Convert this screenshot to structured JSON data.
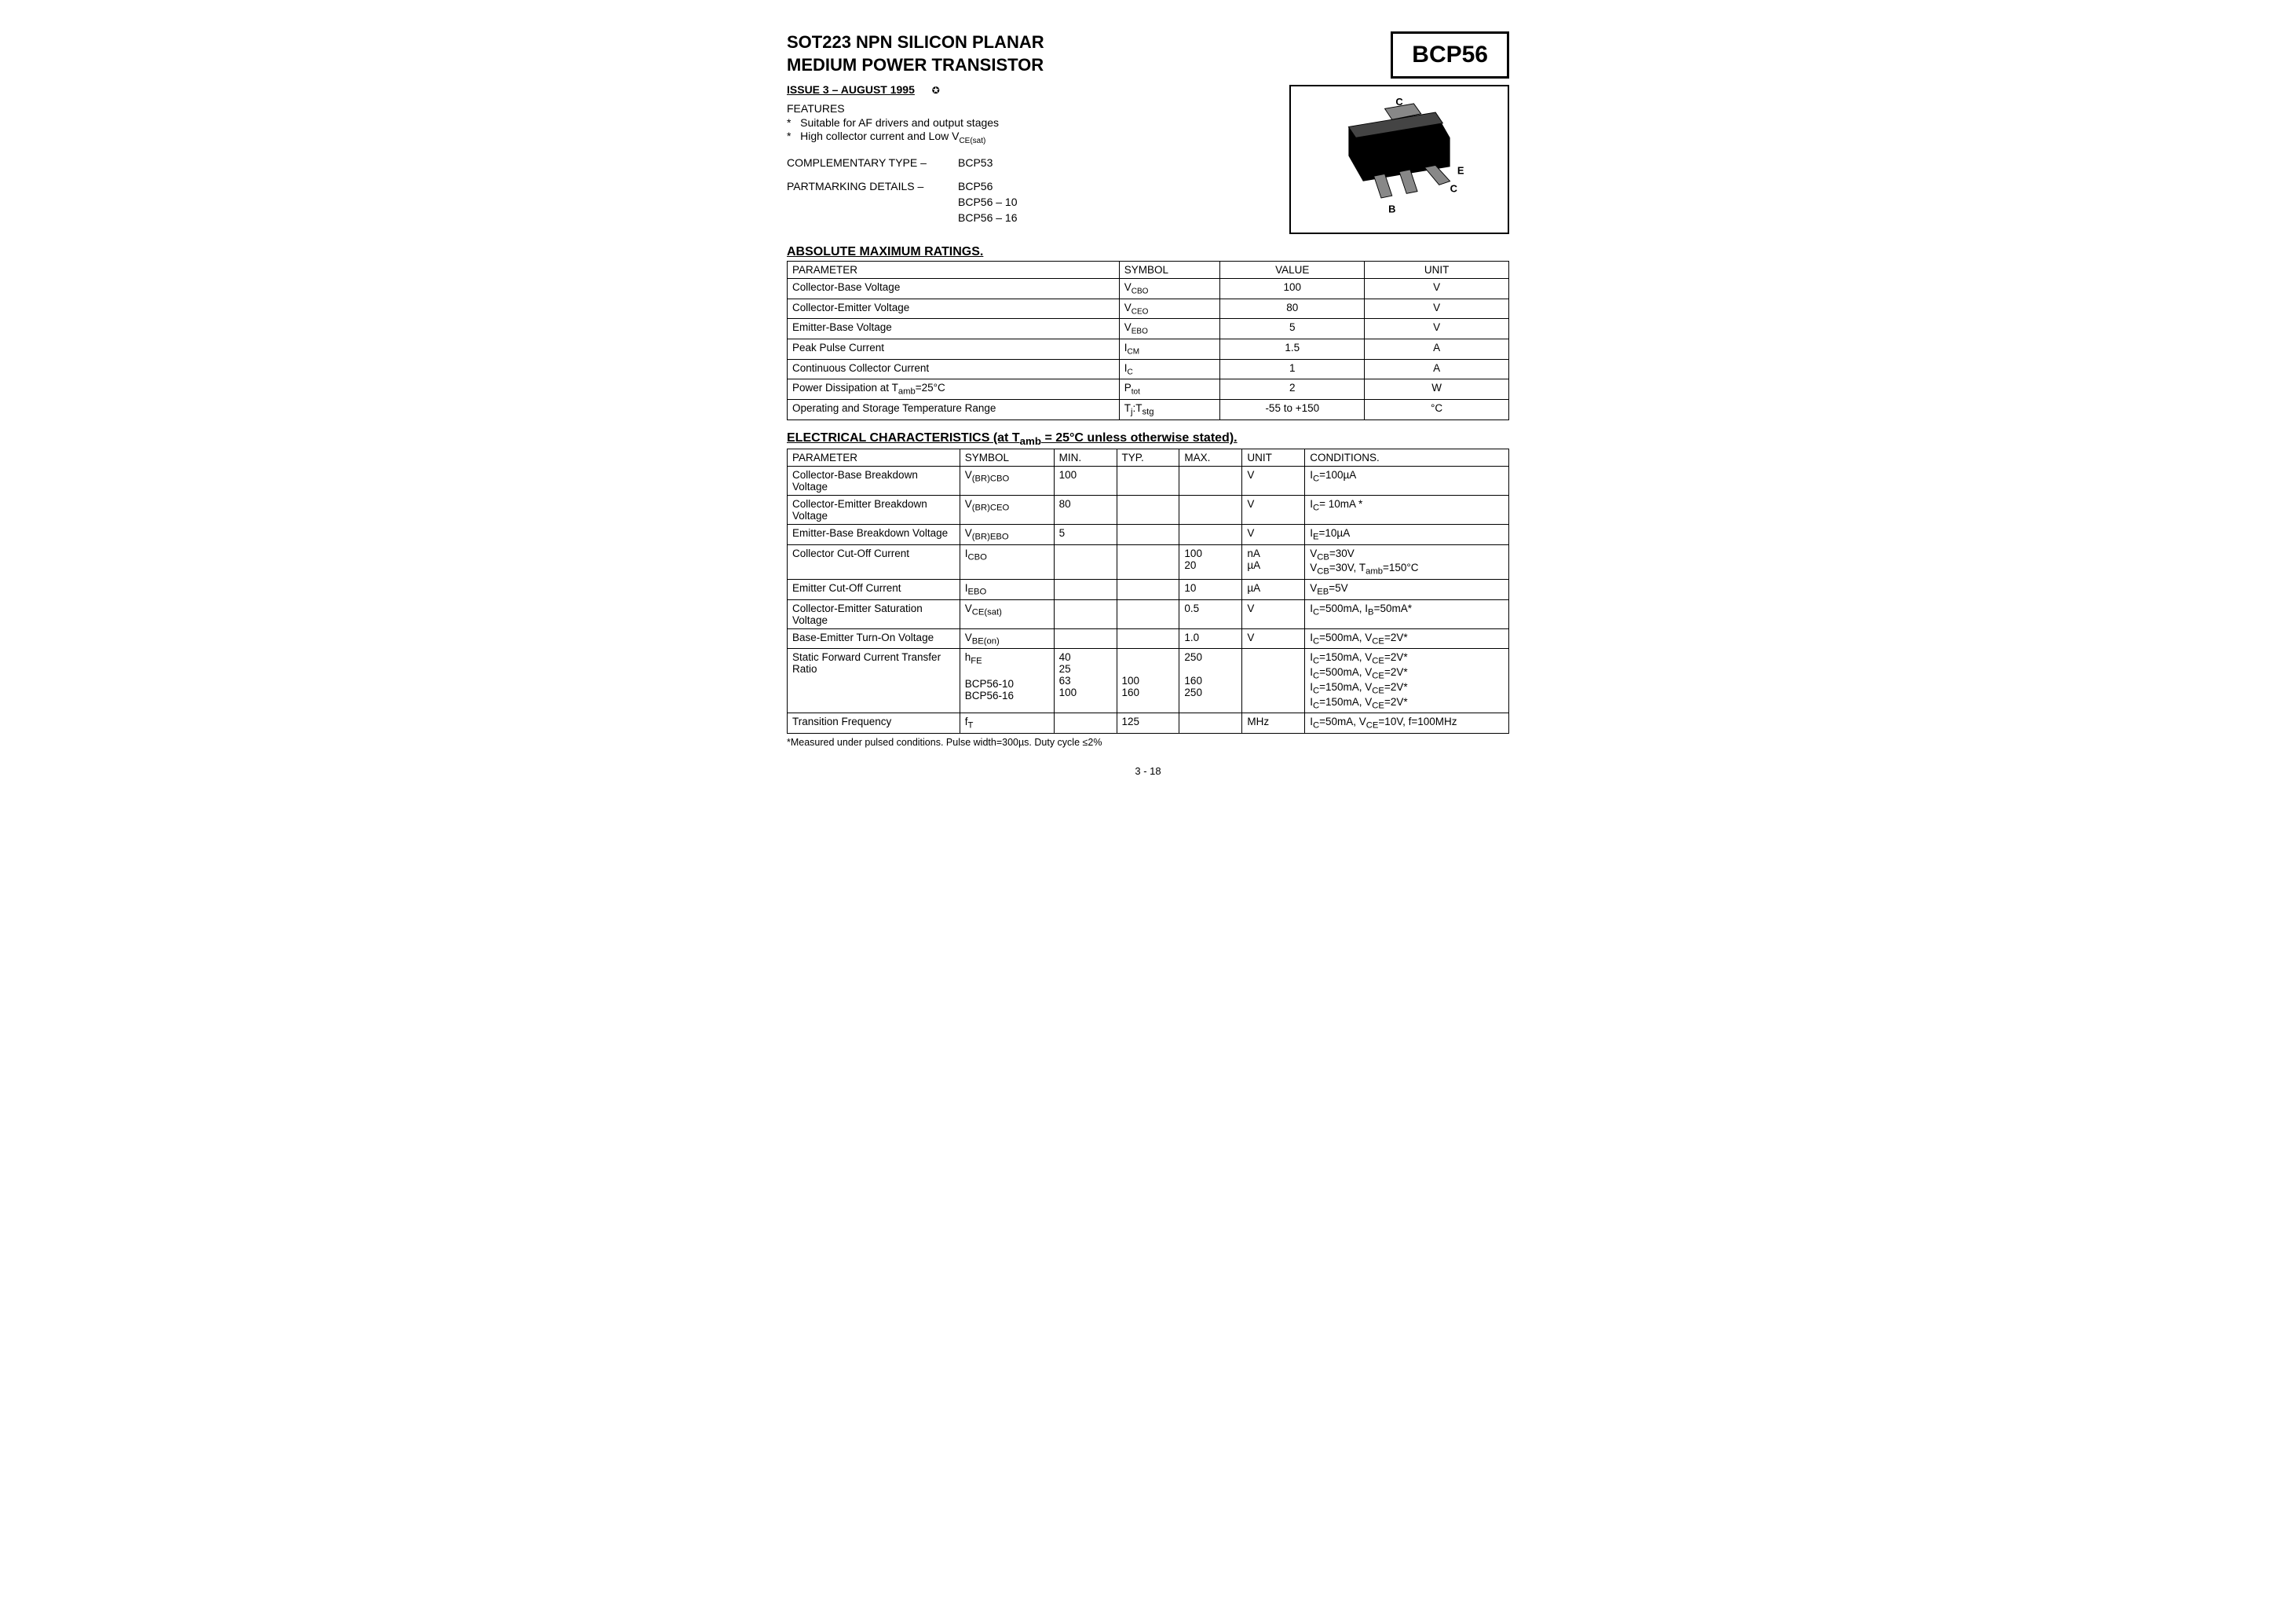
{
  "title_line1": "SOT223 NPN SILICON PLANAR",
  "title_line2": "MEDIUM POWER TRANSISTOR",
  "part_number": "BCP56",
  "issue": "ISSUE 3 – AUGUST 1995",
  "features_hd": "FEATURES",
  "features": [
    "Suitable for AF drivers and output stages",
    "High collector current and Low V"
  ],
  "feature2_sub": "CE(sat)",
  "complementary_label": "COMPLEMENTARY TYPE  –",
  "complementary_value": "BCP53",
  "partmarking_label": "PARTMARKING DETAILS  –",
  "partmarking_values": [
    "BCP56",
    "BCP56 – 10",
    "BCP56 – 16"
  ],
  "pkg_pins": {
    "C_top": "C",
    "E": "E",
    "C_mid": "C",
    "B": "B"
  },
  "amr_hd": "ABSOLUTE MAXIMUM RATINGS.",
  "amr_headers": [
    "PARAMETER",
    "SYMBOL",
    "VALUE",
    "UNIT"
  ],
  "amr_rows": [
    {
      "param": "Collector-Base Voltage",
      "sym": "V",
      "sub": "CBO",
      "value": "100",
      "unit": "V"
    },
    {
      "param": "Collector-Emitter Voltage",
      "sym": "V",
      "sub": "CEO",
      "value": "80",
      "unit": "V"
    },
    {
      "param": "Emitter-Base Voltage",
      "sym": "V",
      "sub": "EBO",
      "value": "5",
      "unit": "V"
    },
    {
      "param": "Peak Pulse Current",
      "sym": "I",
      "sub": "CM",
      "value": "1.5",
      "unit": "A"
    },
    {
      "param": "Continuous Collector Current",
      "sym": "I",
      "sub": "C",
      "value": "1",
      "unit": "A"
    },
    {
      "param_html": "Power Dissipation at T<sub>amb</sub>=25°C",
      "sym": "P",
      "sub": "tot",
      "value": "2",
      "unit": "W"
    },
    {
      "param": "Operating and Storage Temperature Range",
      "sym_html": "T<sub>j</sub>:T<sub>stg</sub>",
      "value": "-55 to +150",
      "unit": "°C"
    }
  ],
  "ec_hd_pre": "ELECTRICAL CHARACTERISTICS (at T",
  "ec_hd_sub": "amb",
  "ec_hd_post": " = 25°C unless otherwise stated).",
  "ec_headers": [
    "PARAMETER",
    "SYMBOL",
    "MIN.",
    "TYP.",
    "MAX.",
    "UNIT",
    "CONDITIONS."
  ],
  "ec_rows": [
    {
      "param": "Collector-Base Breakdown Voltage",
      "sym_html": "V<sub>(BR)CBO</sub>",
      "min": "100",
      "typ": "",
      "max": "",
      "unit": "V",
      "cond_html": "I<sub>C</sub>=100µA"
    },
    {
      "param": "Collector-Emitter Breakdown Voltage",
      "sym_html": "V<sub>(BR)CEO</sub>",
      "min": "80",
      "typ": "",
      "max": "",
      "unit": "V",
      "cond_html": "I<sub>C</sub>= 10mA *"
    },
    {
      "param": "Emitter-Base Breakdown Voltage",
      "sym_html": "V<sub>(BR)EBO</sub>",
      "min": "5",
      "typ": "",
      "max": "",
      "unit": "V",
      "cond_html": "I<sub>E</sub>=10µA"
    },
    {
      "param": "Collector Cut-Off Current",
      "sym_html": "I<sub>CBO</sub>",
      "min": "",
      "typ": "",
      "max": "100<br>20",
      "unit": "nA<br>µA",
      "cond_html": "V<sub>CB</sub>=30V<br>V<sub>CB</sub>=30V, T<sub>amb</sub>=150°C"
    },
    {
      "param": "Emitter Cut-Off Current",
      "sym_html": "I<sub>EBO</sub>",
      "min": "",
      "typ": "",
      "max": "10",
      "unit": "µA",
      "cond_html": "V<sub>EB</sub>=5V"
    },
    {
      "param": "Collector-Emitter Saturation Voltage",
      "sym_html": "V<sub>CE(sat)</sub>",
      "min": "",
      "typ": "",
      "max": "0.5",
      "unit": "V",
      "cond_html": "I<sub>C</sub>=500mA, I<sub>B</sub>=50mA*"
    },
    {
      "param": "Base-Emitter Turn-On Voltage",
      "sym_html": "V<sub>BE(on)</sub>",
      "min": "",
      "typ": "",
      "max": "1.0",
      "unit": "V",
      "cond_html": "I<sub>C</sub>=500mA, V<sub>CE</sub>=2V*"
    },
    {
      "param": "Static Forward Current Transfer Ratio",
      "sym_html": "h<sub>FE</sub><br><br>BCP56-10<br>BCP56-16",
      "min": "40<br>25<br>63<br>100",
      "typ": "<br><br>100<br>160",
      "max": "250<br><br>160<br>250",
      "unit": "",
      "cond_html": "I<sub>C</sub>=150mA, V<sub>CE</sub>=2V*<br>I<sub>C</sub>=500mA, V<sub>CE</sub>=2V*<br>I<sub>C</sub>=150mA, V<sub>CE</sub>=2V*<br>I<sub>C</sub>=150mA, V<sub>CE</sub>=2V*"
    },
    {
      "param": "Transition Frequency",
      "sym_html": "f<sub>T</sub>",
      "min": "",
      "typ": "125",
      "max": "",
      "unit": "MHz",
      "cond_html": "I<sub>C</sub>=50mA, V<sub>CE</sub>=10V, f=100MHz"
    }
  ],
  "footnote": "*Measured under pulsed conditions. Pulse width=300µs. Duty cycle ≤2%",
  "pagenum": "3 - 18"
}
